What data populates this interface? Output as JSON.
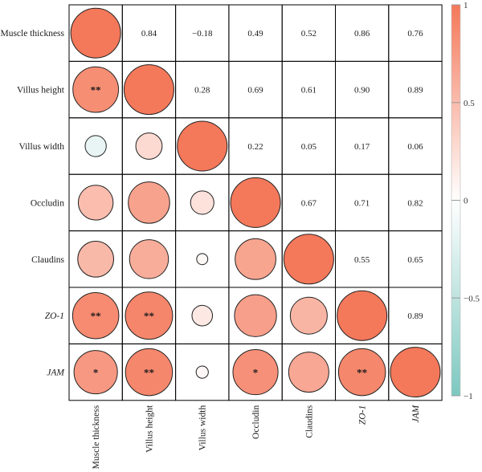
{
  "chart_data": {
    "type": "heatmap",
    "variables": [
      "Muscle thickness",
      "Villus height",
      "Villus width",
      "Occludin",
      "Claudins",
      "ZO-1",
      "JAM"
    ],
    "italic_variables": [
      "ZO-1",
      "JAM"
    ],
    "matrix": [
      [
        1.0,
        0.84,
        -0.18,
        0.49,
        0.52,
        0.86,
        0.76
      ],
      [
        0.84,
        1.0,
        0.28,
        0.69,
        0.61,
        0.9,
        0.89
      ],
      [
        -0.18,
        0.28,
        1.0,
        0.22,
        0.05,
        0.17,
        0.06
      ],
      [
        0.49,
        0.69,
        0.22,
        1.0,
        0.67,
        0.71,
        0.82
      ],
      [
        0.52,
        0.61,
        0.05,
        0.67,
        1.0,
        0.55,
        0.65
      ],
      [
        0.86,
        0.9,
        0.17,
        0.71,
        0.55,
        1.0,
        0.89
      ],
      [
        0.76,
        0.89,
        0.06,
        0.82,
        0.65,
        0.89,
        1.0
      ]
    ],
    "upper_triangle_labels": [
      {
        "row": 0,
        "col": 1,
        "text": "0.84"
      },
      {
        "row": 0,
        "col": 2,
        "text": "−0.18"
      },
      {
        "row": 0,
        "col": 3,
        "text": "0.49"
      },
      {
        "row": 0,
        "col": 4,
        "text": "0.52"
      },
      {
        "row": 0,
        "col": 5,
        "text": "0.86"
      },
      {
        "row": 0,
        "col": 6,
        "text": "0.76"
      },
      {
        "row": 1,
        "col": 2,
        "text": "0.28"
      },
      {
        "row": 1,
        "col": 3,
        "text": "0.69"
      },
      {
        "row": 1,
        "col": 4,
        "text": "0.61"
      },
      {
        "row": 1,
        "col": 5,
        "text": "0.90"
      },
      {
        "row": 1,
        "col": 6,
        "text": "0.89"
      },
      {
        "row": 2,
        "col": 3,
        "text": "0.22"
      },
      {
        "row": 2,
        "col": 4,
        "text": "0.05"
      },
      {
        "row": 2,
        "col": 5,
        "text": "0.17"
      },
      {
        "row": 2,
        "col": 6,
        "text": "0.06"
      },
      {
        "row": 3,
        "col": 4,
        "text": "0.67"
      },
      {
        "row": 3,
        "col": 5,
        "text": "0.71"
      },
      {
        "row": 3,
        "col": 6,
        "text": "0.82"
      },
      {
        "row": 4,
        "col": 5,
        "text": "0.55"
      },
      {
        "row": 4,
        "col": 6,
        "text": "0.65"
      },
      {
        "row": 5,
        "col": 6,
        "text": "0.89"
      }
    ],
    "significance": [
      {
        "row": 1,
        "col": 0,
        "text": "**"
      },
      {
        "row": 5,
        "col": 0,
        "text": "**"
      },
      {
        "row": 5,
        "col": 1,
        "text": "**"
      },
      {
        "row": 6,
        "col": 0,
        "text": "*"
      },
      {
        "row": 6,
        "col": 1,
        "text": "**"
      },
      {
        "row": 6,
        "col": 3,
        "text": "*"
      },
      {
        "row": 6,
        "col": 5,
        "text": "**"
      }
    ],
    "colorbar": {
      "min": -1,
      "max": 1,
      "ticks": [
        "1",
        "0.5",
        "0",
        "−0.5",
        "−1"
      ],
      "colors": {
        "negative": "#7dc8c0",
        "zero": "#ffffff",
        "positive": "#f4785a"
      }
    },
    "colors": {
      "grid": "#000000",
      "circle_stroke": "#222222",
      "tick_line": "#999999"
    }
  }
}
